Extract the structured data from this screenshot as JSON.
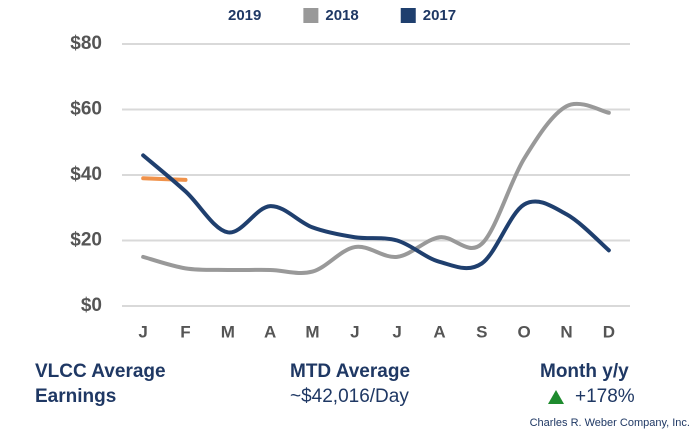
{
  "chart_data": {
    "type": "line",
    "categories": [
      "J",
      "F",
      "M",
      "A",
      "M",
      "J",
      "J",
      "A",
      "S",
      "O",
      "N",
      "D"
    ],
    "series": [
      {
        "name": "2019",
        "color": "#f0924a",
        "values": [
          39,
          38.5,
          null,
          null,
          null,
          null,
          null,
          null,
          null,
          null,
          null,
          null
        ]
      },
      {
        "name": "2018",
        "color": "#999999",
        "values": [
          15,
          11.5,
          11,
          11,
          10.5,
          18,
          15,
          21,
          19,
          45,
          61,
          59
        ]
      },
      {
        "name": "2017",
        "color": "#1f3f6e",
        "values": [
          46,
          35,
          22.5,
          30.5,
          24,
          21,
          20,
          13.5,
          13,
          31,
          28,
          17
        ]
      }
    ],
    "ylim": [
      0,
      80
    ],
    "yticks": [
      {
        "value": 0,
        "label": "$0"
      },
      {
        "value": 20,
        "label": "$20"
      },
      {
        "value": 40,
        "label": "$40"
      },
      {
        "value": 60,
        "label": "$60"
      },
      {
        "value": 80,
        "label": "$80"
      }
    ],
    "grid": true
  },
  "captions": {
    "title_line1": "VLCC Average",
    "title_line2": "Earnings",
    "mtd_label": "MTD Average",
    "mtd_value": "~$42,016/Day",
    "yoy_label": "Month y/y",
    "yoy_value": "+178%",
    "credit": "Charles R. Weber Company, Inc."
  }
}
